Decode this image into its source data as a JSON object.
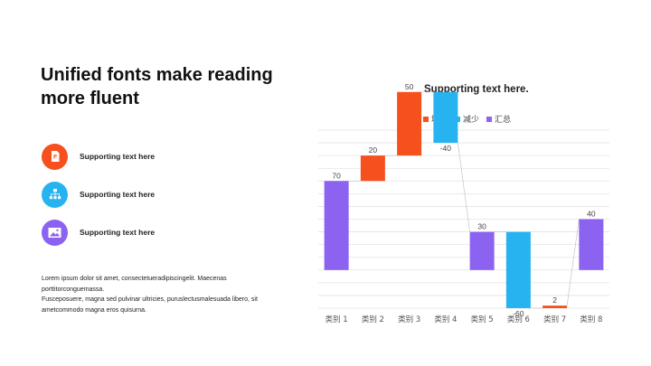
{
  "slide": {
    "title": "Unified fonts make reading more fluent",
    "features": [
      {
        "label": "Supporting  text here",
        "icon": "document-icon",
        "color": "#F5501E"
      },
      {
        "label": "Supporting  text here",
        "icon": "hierarchy-icon",
        "color": "#27B3F0"
      },
      {
        "label": "Supporting  text here",
        "icon": "image-icon",
        "color": "#8C63F0"
      }
    ],
    "body": {
      "line1": "Lorem ipsum dolor sit amet, consectetueradipiscingelit.  Maecenas porttitorconguemassa.",
      "line2": "Fusceposuere, magna sed pulvinar ultricies, puruslectusmalesuada libero, sit ametcommodo magna eros quisurna."
    }
  },
  "chart_data": {
    "type": "bar",
    "subtype": "waterfall",
    "title": "Supporting text here.",
    "legend": [
      {
        "name": "增加",
        "color": "#F5501E"
      },
      {
        "name": "减少",
        "color": "#27B3F0"
      },
      {
        "name": "汇总",
        "color": "#8C63F0"
      }
    ],
    "legend_position": "top",
    "categories": [
      "类别 1",
      "类别 2",
      "类别 3",
      "类别 4",
      "类别 5",
      "类别 6",
      "类别 7",
      "类别 8"
    ],
    "values": [
      70,
      20,
      50,
      -40,
      30,
      -60,
      2,
      40
    ],
    "value_labels": [
      "70",
      "20",
      "50",
      "-40",
      "30",
      "-60",
      "2",
      "40"
    ],
    "bar_kind": [
      "total",
      "increase",
      "increase",
      "decrease",
      "total",
      "decrease",
      "increase",
      "total"
    ],
    "ylim": [
      -30,
      110
    ],
    "grid": true,
    "colors": {
      "increase": "#F5501E",
      "decrease": "#27B3F0",
      "total": "#8C63F0"
    }
  }
}
